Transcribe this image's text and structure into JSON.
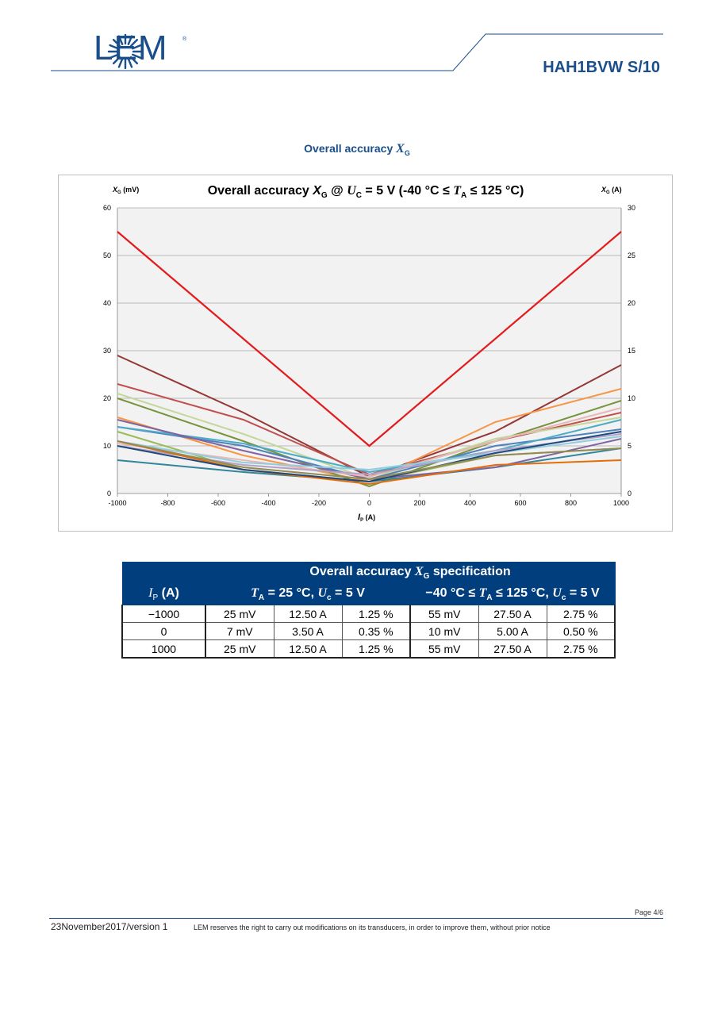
{
  "header": {
    "logo_text": "LEM",
    "logo_reg": "®",
    "doc_id": "HAH1BVW S/10"
  },
  "section": {
    "title_prefix": "Overall accuracy ",
    "title_symbol": "X",
    "title_sub": "G"
  },
  "chart_data": {
    "type": "line",
    "title": "Overall accuracy XG @ UC = 5 V (-40 °C ≤ TA ≤ 125 °C)",
    "title_parts": {
      "a": "Overall accuracy ",
      "x": "X",
      "xsub": "G",
      "at": " @ ",
      "u": "U",
      "usub": "C",
      "mid": " = 5 V (-40 °C ≤ ",
      "t": "T",
      "tsub": "A",
      "end": " ≤ 125 °C)"
    },
    "y_left_label": "XG (mV)",
    "y_left_label_parts": {
      "x": "X",
      "sub": "G",
      "unit": " (mV)"
    },
    "y_right_label": "XG (A)",
    "y_right_label_parts": {
      "x": "X",
      "sub": "G",
      "unit": " (A)"
    },
    "xlabel": "IP (A)",
    "xlabel_parts": {
      "i": "I",
      "sub": "P",
      "unit": " (A)"
    },
    "xlim": [
      -1000,
      1000
    ],
    "ylim_left": [
      0,
      60
    ],
    "ylim_right": [
      0,
      30
    ],
    "x_ticks": [
      "-1000",
      "-800",
      "-600",
      "-400",
      "-200",
      "0",
      "200",
      "400",
      "600",
      "800",
      "1000"
    ],
    "y_left_ticks": [
      "0",
      "10",
      "20",
      "30",
      "40",
      "50",
      "60"
    ],
    "y_right_ticks": [
      "0",
      "5",
      "10",
      "15",
      "20",
      "25",
      "30"
    ],
    "grid": true,
    "limit_series": {
      "color": "#e31a1c",
      "x": [
        -1000,
        0,
        1000
      ],
      "values": [
        55,
        10,
        55
      ]
    },
    "series": [
      {
        "color": "#953735",
        "x": [
          -1000,
          -500,
          0,
          500,
          1000
        ],
        "values": [
          29,
          17,
          3.5,
          13,
          27
        ]
      },
      {
        "color": "#c0504d",
        "x": [
          -1000,
          -500,
          0,
          500,
          1000
        ],
        "values": [
          23,
          15.5,
          4,
          11,
          17
        ]
      },
      {
        "color": "#f79646",
        "x": [
          -1000,
          -500,
          0,
          500,
          1000
        ],
        "values": [
          16,
          8,
          2.5,
          15,
          22
        ]
      },
      {
        "color": "#77933c",
        "x": [
          -1000,
          -500,
          0,
          500,
          1000
        ],
        "values": [
          20,
          11,
          1.5,
          11,
          19.5
        ]
      },
      {
        "color": "#c4d79b",
        "x": [
          -1000,
          -500,
          0,
          500,
          1000
        ],
        "values": [
          21,
          12.5,
          3,
          11.5,
          16
        ]
      },
      {
        "color": "#9bbb59",
        "x": [
          -1000,
          -500,
          0,
          500,
          1000
        ],
        "values": [
          13,
          5,
          2.5,
          8,
          9.5
        ]
      },
      {
        "color": "#4f81bd",
        "x": [
          -1000,
          -500,
          0,
          500,
          1000
        ],
        "values": [
          14,
          10,
          3,
          10,
          13.5
        ]
      },
      {
        "color": "#31859c",
        "x": [
          -1000,
          -500,
          0,
          500,
          1000
        ],
        "values": [
          7,
          4.5,
          2.5,
          5.5,
          9.5
        ]
      },
      {
        "color": "#4bacc6",
        "x": [
          -1000,
          -500,
          0,
          500,
          1000
        ],
        "values": [
          14,
          10.5,
          4.5,
          9,
          15.5
        ]
      },
      {
        "color": "#8064a2",
        "x": [
          -1000,
          -500,
          0,
          500,
          1000
        ],
        "values": [
          15.5,
          9,
          3,
          5.5,
          11.5
        ]
      },
      {
        "color": "#e6b9b8",
        "x": [
          -1000,
          -500,
          0,
          500,
          1000
        ],
        "values": [
          10.5,
          7,
          3.5,
          11,
          18
        ]
      },
      {
        "color": "#b3a2c7",
        "x": [
          -1000,
          -500,
          0,
          500,
          1000
        ],
        "values": [
          10,
          6,
          4,
          9,
          12.5
        ]
      },
      {
        "color": "#93cddd",
        "x": [
          -1000,
          -500,
          0,
          500,
          1000
        ],
        "values": [
          11,
          6.5,
          5,
          8.5,
          12
        ]
      },
      {
        "color": "#e46c0a",
        "x": [
          -1000,
          -500,
          0,
          500,
          1000
        ],
        "values": [
          11,
          5,
          2,
          6,
          7
        ]
      },
      {
        "color": "#1f497d",
        "x": [
          -1000,
          -500,
          0,
          500,
          1000
        ],
        "values": [
          10,
          5,
          2.5,
          8.5,
          13
        ]
      },
      {
        "color": "#948a54",
        "x": [
          -1000,
          -500,
          0,
          500,
          1000
        ],
        "values": [
          11,
          5.5,
          3,
          8,
          9.5
        ]
      }
    ]
  },
  "table": {
    "header_main": {
      "a": "Overall accuracy ",
      "x": "X",
      "sub": "G",
      "end": " specification"
    },
    "col_ip": {
      "i": "I",
      "sub": "P",
      "unit": "  (A)"
    },
    "col_25": {
      "t": "T",
      "tsub": "A",
      "mid": " = 25 °C, ",
      "u": "U",
      "usub": "c",
      "end": " = 5 V"
    },
    "col_range": {
      "pre": "−40 °C ≤ ",
      "t": "T",
      "tsub": "A",
      "mid": " ≤ 125 °C, ",
      "u": "U",
      "usub": "c",
      "end": " = 5 V"
    },
    "rows": [
      [
        "−1000",
        "25 mV",
        "12.50 A",
        "1.25 %",
        "55 mV",
        "27.50 A",
        "2.75 %"
      ],
      [
        "0",
        "7 mV",
        "3.50 A",
        "0.35 %",
        "10 mV",
        "5.00 A",
        "0.50 %"
      ],
      [
        "1000",
        "25 mV",
        "12.50 A",
        "1.25 %",
        "55 mV",
        "27.50 A",
        "2.75 %"
      ]
    ]
  },
  "footer": {
    "page": "Page 4/6",
    "date": "23November2017/version 1",
    "notice": "LEM reserves the right to carry out modifications on its transducers, in order to improve them, without prior notice"
  },
  "colors": {
    "brand_blue": "#1a4f8b",
    "table_header": "#003e7e",
    "limit_red": "#e31a1c"
  }
}
